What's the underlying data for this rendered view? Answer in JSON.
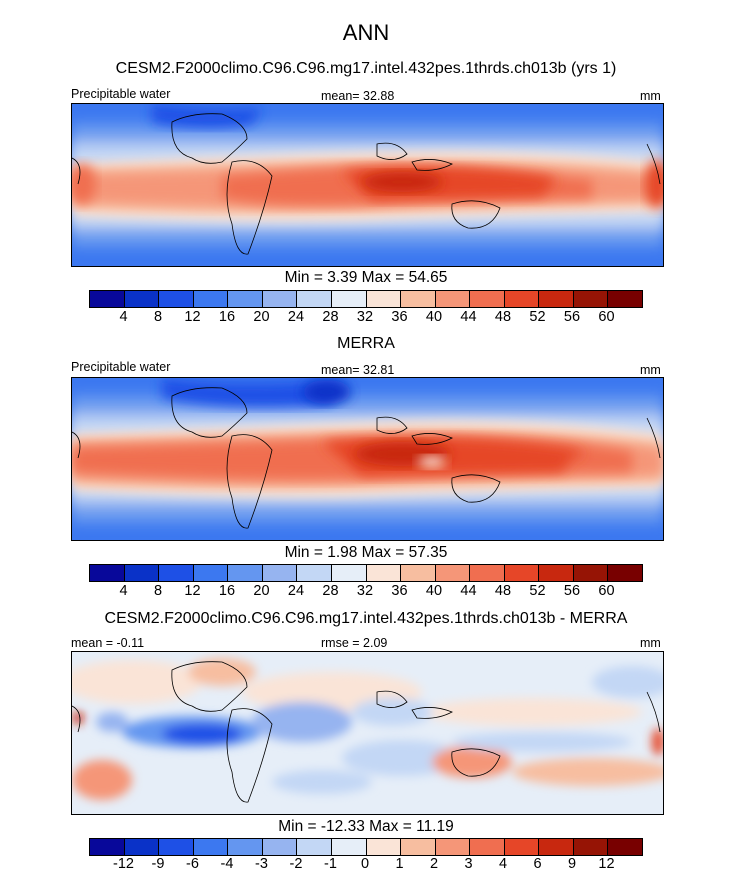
{
  "header": {
    "title": "ANN",
    "subtitle": "CESM2.F2000climo.C96.C96.mg17.intel.432pes.1thrds.ch013b (yrs 1)"
  },
  "chart_data": [
    {
      "type": "heatmap",
      "name": "model",
      "left_label": "Precipitable water",
      "center_label": "mean=  32.88",
      "right_label": "mm",
      "min_max_text": "Min =   3.39 Max =  54.65",
      "colorbar_ticks": [
        "4",
        "8",
        "12",
        "16",
        "20",
        "24",
        "28",
        "32",
        "36",
        "40",
        "44",
        "48",
        "52",
        "56",
        "60"
      ]
    },
    {
      "type": "heatmap",
      "name": "obs",
      "title": "MERRA",
      "left_label": "Precipitable water",
      "center_label": "mean=  32.81",
      "right_label": "mm",
      "min_max_text": "Min =   1.98 Max =  57.35",
      "colorbar_ticks": [
        "4",
        "8",
        "12",
        "16",
        "20",
        "24",
        "28",
        "32",
        "36",
        "40",
        "44",
        "48",
        "52",
        "56",
        "60"
      ]
    },
    {
      "type": "heatmap",
      "name": "difference",
      "title": "CESM2.F2000climo.C96.C96.mg17.intel.432pes.1thrds.ch013b - MERRA",
      "left_label": "mean =  -0.11",
      "center_label": "rmse =   2.09",
      "right_label": "mm",
      "min_max_text": "Min = -12.33 Max =  11.19",
      "colorbar_ticks": [
        "-12",
        "-9",
        "-6",
        "-4",
        "-3",
        "-2",
        "-1",
        "0",
        "1",
        "2",
        "3",
        "4",
        "6",
        "9",
        "12"
      ]
    }
  ],
  "colors": {
    "palette": [
      "#08089a",
      "#0a32c8",
      "#1e50e6",
      "#3c78f0",
      "#6496f0",
      "#96b4f0",
      "#c3d7f5",
      "#e6eef8",
      "#fae4d7",
      "#f7bea0",
      "#f59678",
      "#f06e50",
      "#e64628",
      "#c8280f",
      "#961405",
      "#780000"
    ]
  }
}
